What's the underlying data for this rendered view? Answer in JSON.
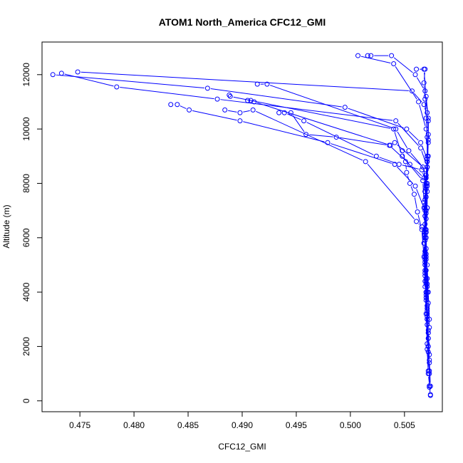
{
  "chart_data": {
    "type": "line",
    "title": "ATOM1 North_America CFC12_GMI",
    "xlabel": "CFC12_GMI",
    "ylabel": "Altitude (m)",
    "xlim": [
      0.4715,
      0.5085
    ],
    "ylim": [
      -400,
      13200
    ],
    "x_ticks": [
      0.475,
      0.48,
      0.485,
      0.49,
      0.495,
      0.5,
      0.505
    ],
    "x_tick_labels": [
      "0.475",
      "0.480",
      "0.485",
      "0.490",
      "0.495",
      "0.500",
      "0.505"
    ],
    "y_ticks": [
      0,
      2000,
      4000,
      6000,
      8000,
      10000,
      12000
    ],
    "y_tick_labels": [
      "0",
      "2000",
      "4000",
      "6000",
      "8000",
      "10000",
      "12000"
    ],
    "grid": false,
    "legend": "none",
    "marker": "open-circle",
    "colors": {
      "series": "#0000ff",
      "axis": "#000000"
    },
    "series": [
      {
        "x": [
          0.5074,
          0.5073,
          0.5073,
          0.5072,
          0.5072,
          0.5071,
          0.5071,
          0.507,
          0.507,
          0.5069,
          0.5069,
          0.5069,
          0.507,
          0.5071,
          0.5065,
          0.5052,
          0.4995,
          0.4868,
          0.4725
        ],
        "y": [
          200,
          500,
          1100,
          1800,
          2500,
          3200,
          4000,
          4800,
          5600,
          6300,
          7000,
          7700,
          8300,
          8900,
          9500,
          10000,
          10800,
          11500,
          12000
        ]
      },
      {
        "x": [
          0.5074,
          0.5072,
          0.5071,
          0.5071,
          0.507,
          0.5069,
          0.5069,
          0.507,
          0.5068,
          0.506,
          0.5041,
          0.4979,
          0.4898,
          0.4851,
          0.484,
          0.4834
        ],
        "y": [
          230,
          1000,
          1900,
          2800,
          3700,
          4600,
          5400,
          6200,
          7100,
          7900,
          8700,
          9500,
          10300,
          10700,
          10900,
          10900
        ]
      },
      {
        "x": [
          0.5073,
          0.5073,
          0.5072,
          0.5071,
          0.507,
          0.5069,
          0.5069,
          0.507,
          0.5071,
          0.5071,
          0.5067,
          0.5054,
          0.5042,
          0.4923,
          0.4914
        ],
        "y": [
          550,
          1400,
          2300,
          3100,
          3900,
          4700,
          5500,
          6300,
          7100,
          7900,
          8600,
          9200,
          10000,
          11650,
          11650
        ]
      },
      {
        "x": [
          0.5074,
          0.5073,
          0.5072,
          0.5071,
          0.507,
          0.5069,
          0.5069,
          0.507,
          0.507,
          0.5068,
          0.5055,
          0.5036,
          0.4987,
          0.4959,
          0.4945
        ],
        "y": [
          540,
          1500,
          2500,
          3400,
          4300,
          5100,
          5900,
          6700,
          7500,
          8200,
          8700,
          9400,
          9700,
          9800,
          10600
        ]
      },
      {
        "x": [
          0.5072,
          0.5071,
          0.507,
          0.5069,
          0.5069,
          0.507,
          0.5071,
          0.507,
          0.5066,
          0.5045,
          0.5024,
          0.4957,
          0.4939,
          0.4934
        ],
        "y": [
          1100,
          2100,
          3200,
          4200,
          5200,
          6200,
          7100,
          8000,
          8500,
          8700,
          9000,
          10300,
          10600,
          10600
        ]
      },
      {
        "x": [
          0.5073,
          0.5072,
          0.5071,
          0.507,
          0.5069,
          0.5068,
          0.5066,
          0.5061,
          0.5014,
          0.491,
          0.4898,
          0.4884
        ],
        "y": [
          1000,
          2000,
          3000,
          4000,
          5000,
          5800,
          6400,
          6600,
          8800,
          10700,
          10600,
          10700
        ]
      },
      {
        "x": [
          0.5073,
          0.5072,
          0.5071,
          0.507,
          0.5069,
          0.5069,
          0.507,
          0.5071,
          0.507,
          0.5041,
          0.5037,
          0.4911,
          0.4908,
          0.4905
        ],
        "y": [
          1700,
          2600,
          3500,
          4400,
          5300,
          6100,
          6900,
          7700,
          8500,
          9500,
          9400,
          11000,
          11050,
          11050
        ]
      },
      {
        "x": [
          0.5072,
          0.5071,
          0.5071,
          0.507,
          0.5069,
          0.5068,
          0.5067,
          0.5048,
          0.504,
          0.4889,
          0.4888
        ],
        "y": [
          2300,
          3300,
          4300,
          5300,
          6300,
          7300,
          8100,
          9000,
          10000,
          11200,
          11250
        ]
      },
      {
        "x": [
          0.5073,
          0.5072,
          0.5071,
          0.507,
          0.5069,
          0.5069,
          0.507,
          0.5071,
          0.5065,
          0.5042,
          0.4877,
          0.4784,
          0.4733
        ],
        "y": [
          2700,
          3600,
          4500,
          5400,
          6300,
          7100,
          7900,
          8600,
          9300,
          10300,
          11100,
          11550,
          12050
        ]
      },
      {
        "x": [
          0.5073,
          0.5072,
          0.5071,
          0.507,
          0.5069,
          0.5069,
          0.5071,
          0.5072,
          0.5072,
          0.5068,
          0.5057,
          0.4748
        ],
        "y": [
          3000,
          4000,
          5000,
          6000,
          6800,
          7700,
          8600,
          9500,
          10300,
          10900,
          11400,
          12100
        ]
      },
      {
        "x": [
          0.5072,
          0.5071,
          0.507,
          0.5069,
          0.5069,
          0.507,
          0.5071,
          0.5072,
          0.507,
          0.5063,
          0.504,
          0.5007
        ],
        "y": [
          2000,
          3000,
          4000,
          5000,
          6000,
          7000,
          8000,
          9000,
          10000,
          11000,
          12400,
          12700
        ]
      },
      {
        "x": [
          0.5071,
          0.507,
          0.5069,
          0.5069,
          0.5069,
          0.507,
          0.5071,
          0.5072,
          0.5071,
          0.5069,
          0.506,
          0.5038,
          0.5019,
          0.5016
        ],
        "y": [
          3500,
          4500,
          5500,
          6500,
          7400,
          8200,
          9000,
          9800,
          10600,
          11400,
          12000,
          12700,
          12700,
          12700
        ]
      },
      {
        "x": [
          0.5071,
          0.507,
          0.5069,
          0.5069,
          0.507,
          0.5071,
          0.5072,
          0.5072,
          0.507,
          0.5068
        ],
        "y": [
          4200,
          5200,
          6200,
          7200,
          8000,
          8800,
          9600,
          10400,
          11200,
          12200
        ]
      },
      {
        "x": [
          0.507,
          0.5069,
          0.5068,
          0.5069,
          0.507,
          0.5071,
          0.5071,
          0.507,
          0.5069,
          0.5068,
          0.5069,
          0.5061
        ],
        "y": [
          3800,
          4800,
          5800,
          6800,
          7800,
          8800,
          9700,
          10400,
          11100,
          11700,
          12200,
          12200
        ]
      },
      {
        "x": [
          0.5069,
          0.5068,
          0.5066,
          0.5062,
          0.5059,
          0.5055,
          0.5052,
          0.5051,
          0.5048
        ],
        "y": [
          4400,
          5300,
          6300,
          6950,
          7600,
          8000,
          8400,
          8800,
          9200
        ]
      }
    ]
  }
}
